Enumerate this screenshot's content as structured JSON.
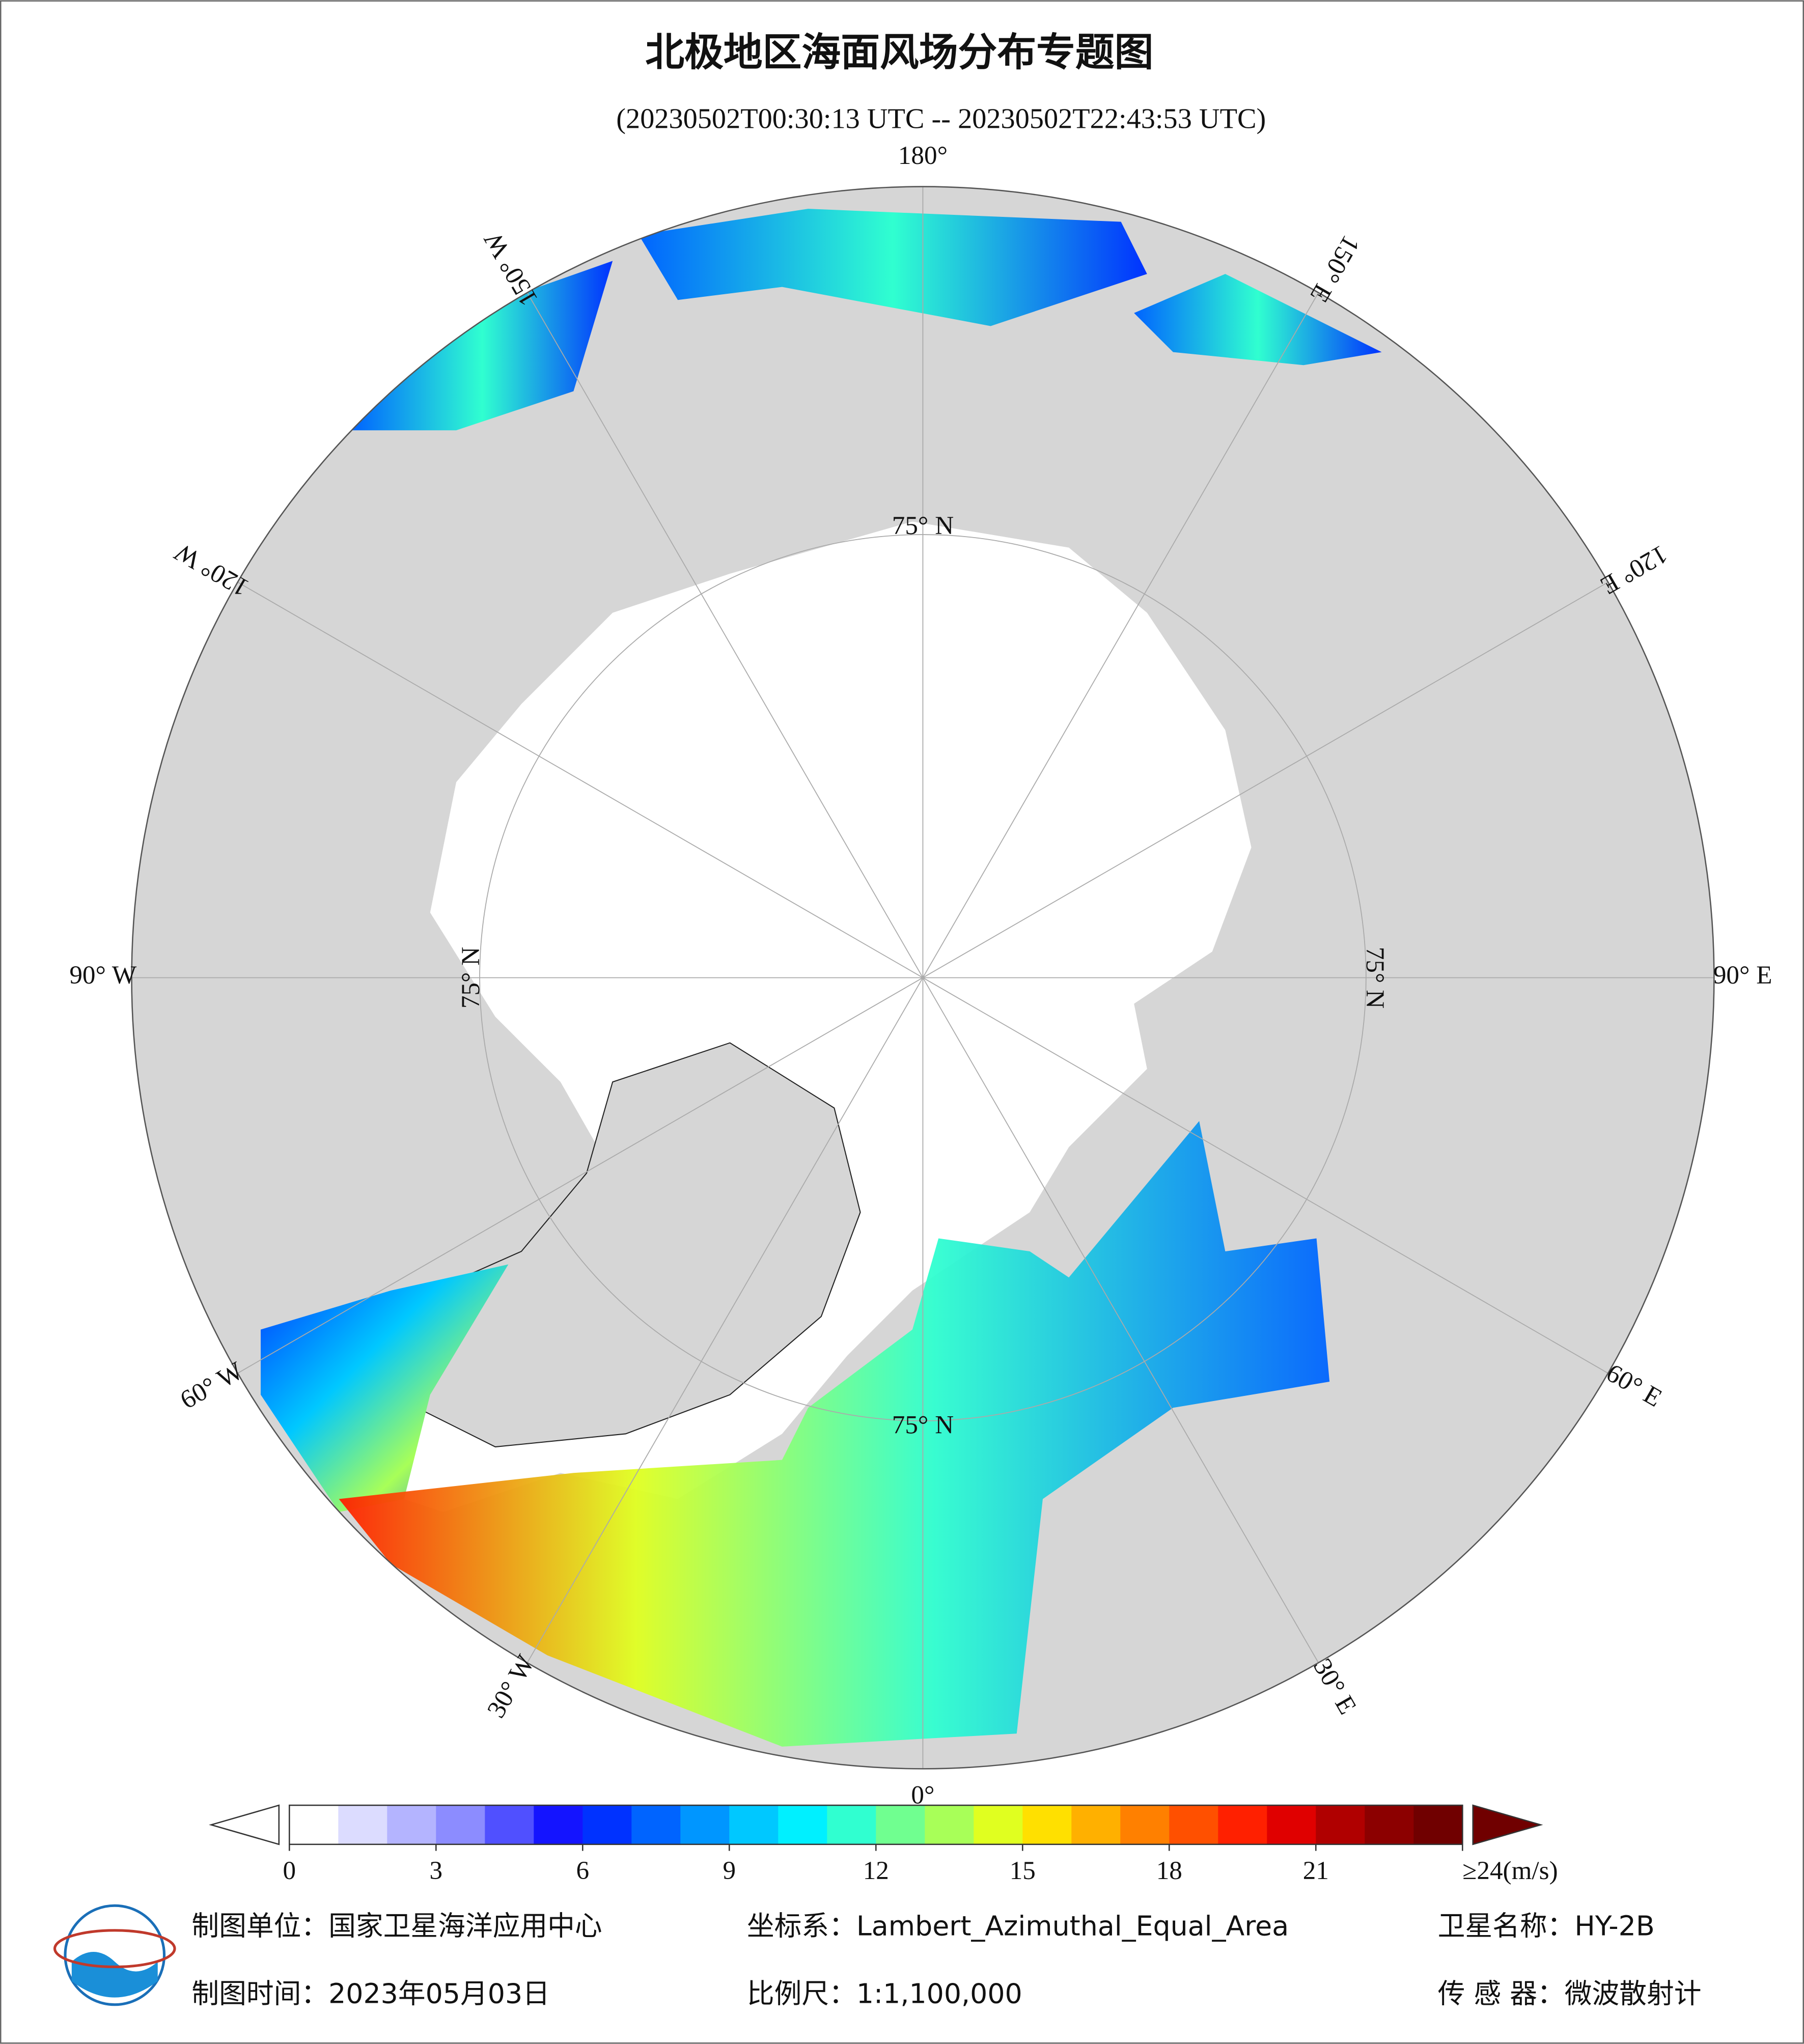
{
  "header": {
    "title": "北极地区海面风场分布专题图",
    "subtitle": "(20230502T00:30:13 UTC -- 20230502T22:43:53 UTC)"
  },
  "map": {
    "longitude_labels": [
      {
        "text": "180°",
        "angle": 180
      },
      {
        "text": "150° W",
        "angle": -150
      },
      {
        "text": "120° W",
        "angle": -120
      },
      {
        "text": "90° W",
        "angle": -90
      },
      {
        "text": "60° W",
        "angle": -60
      },
      {
        "text": "30° W",
        "angle": -30
      },
      {
        "text": "0°",
        "angle": 0
      },
      {
        "text": "30° E",
        "angle": 30
      },
      {
        "text": "60° E",
        "angle": 60
      },
      {
        "text": "90° E",
        "angle": 90
      },
      {
        "text": "120° E",
        "angle": 120
      },
      {
        "text": "150° E",
        "angle": 150
      }
    ],
    "latitude_labels": [
      {
        "text": "75° N",
        "angle": 180
      },
      {
        "text": "75° N",
        "angle": 90
      },
      {
        "text": "75° N",
        "angle": -90
      },
      {
        "text": "75° N",
        "angle": 0
      }
    ]
  },
  "colorbar": {
    "lim": [
      0,
      24
    ],
    "colors": [
      "#ffffff",
      "#dcdcff",
      "#b4b4ff",
      "#8c8cff",
      "#5050ff",
      "#1414ff",
      "#0032ff",
      "#0064ff",
      "#0096ff",
      "#00c8ff",
      "#00f0ff",
      "#30ffd0",
      "#70ff90",
      "#a8ff58",
      "#e0ff20",
      "#ffe000",
      "#ffb000",
      "#ff8000",
      "#ff5000",
      "#ff2000",
      "#e00000",
      "#b00000",
      "#8c0000",
      "#700000"
    ],
    "ticks": [
      0,
      3,
      6,
      9,
      12,
      15,
      18,
      21,
      {
        "value": 24,
        "label": "≥24(m/s)"
      }
    ]
  },
  "footer": {
    "unit": "制图单位：国家卫星海洋应用中心",
    "crs": "坐标系：Lambert_Azimuthal_Equal_Area",
    "satellite": "卫星名称：HY-2B",
    "date": "制图时间：2023年05月03日",
    "scale": "比例尺：1:1,100,000",
    "sensor": "传 感 器：微波散射计"
  }
}
